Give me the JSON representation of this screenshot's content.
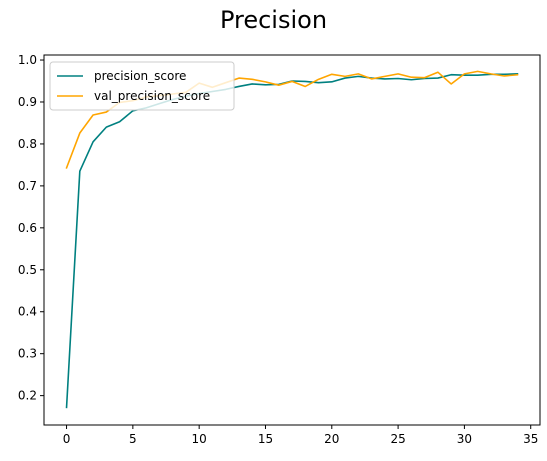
{
  "chart_data": {
    "type": "line",
    "title": "Precision",
    "xlabel": "",
    "ylabel": "",
    "xlim": [
      -1.7,
      35.7
    ],
    "ylim": [
      0.13,
      1.012
    ],
    "xticks": [
      0,
      5,
      10,
      15,
      20,
      25,
      30,
      35
    ],
    "yticks": [
      0.2,
      0.3,
      0.4,
      0.5,
      0.6,
      0.7,
      0.8,
      0.9,
      1.0
    ],
    "ytick_labels": [
      "0.2",
      "0.3",
      "0.4",
      "0.5",
      "0.6",
      "0.7",
      "0.8",
      "0.9",
      "1.0"
    ],
    "grid": false,
    "legend_position": "upper-left",
    "x": [
      0,
      1,
      2,
      3,
      4,
      5,
      6,
      7,
      8,
      9,
      10,
      11,
      12,
      13,
      14,
      15,
      16,
      17,
      18,
      19,
      20,
      21,
      22,
      23,
      24,
      25,
      26,
      27,
      28,
      29,
      30,
      31,
      32,
      33,
      34
    ],
    "series": [
      {
        "name": "precision_score",
        "color": "#008080",
        "values": [
          0.172,
          0.735,
          0.805,
          0.84,
          0.853,
          0.879,
          0.886,
          0.896,
          0.906,
          0.914,
          0.92,
          0.925,
          0.93,
          0.937,
          0.943,
          0.941,
          0.942,
          0.95,
          0.949,
          0.946,
          0.948,
          0.957,
          0.961,
          0.957,
          0.955,
          0.956,
          0.953,
          0.956,
          0.957,
          0.965,
          0.964,
          0.964,
          0.966,
          0.966,
          0.967
        ]
      },
      {
        "name": "val_precision_score",
        "color": "#FFA500",
        "values": [
          0.743,
          0.826,
          0.869,
          0.876,
          0.899,
          0.903,
          0.912,
          0.915,
          0.919,
          0.923,
          0.945,
          0.935,
          0.946,
          0.957,
          0.954,
          0.948,
          0.94,
          0.949,
          0.937,
          0.954,
          0.966,
          0.961,
          0.967,
          0.955,
          0.961,
          0.967,
          0.959,
          0.958,
          0.971,
          0.943,
          0.967,
          0.973,
          0.967,
          0.962,
          0.965
        ]
      }
    ]
  }
}
